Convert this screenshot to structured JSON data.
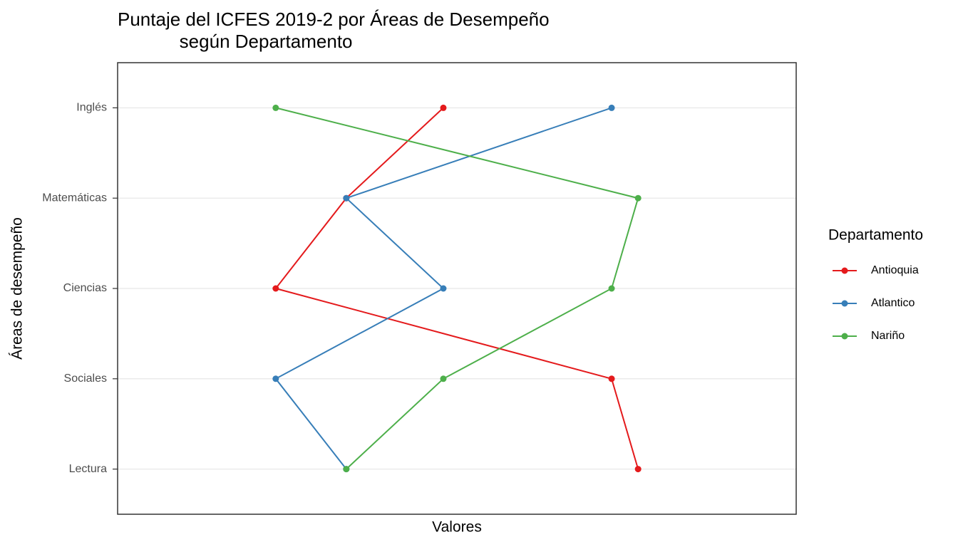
{
  "chart_data": {
    "type": "line",
    "title": "Puntaje del ICFES 2019-2 por Áreas de Desempeño\n            según Departamento",
    "x_label": "Valores",
    "y_label": "Áreas de desempeño",
    "categories": [
      "Inglés",
      "Matemáticas",
      "Ciencias",
      "Sociales",
      "Lectura"
    ],
    "xlim": [
      0,
      100
    ],
    "legend_title": "Departamento",
    "legend_position": "right",
    "grid": true,
    "series": [
      {
        "name": "Antioquia",
        "color": "#E41A1C",
        "values": [
          48.0,
          33.7,
          23.3,
          72.8,
          76.7
        ]
      },
      {
        "name": "Atlantico",
        "color": "#377EB8",
        "values": [
          72.8,
          33.7,
          48.0,
          23.3,
          33.7
        ]
      },
      {
        "name": "Nariño",
        "color": "#4DAF4A",
        "values": [
          23.3,
          76.7,
          72.8,
          48.0,
          33.7
        ]
      }
    ]
  }
}
